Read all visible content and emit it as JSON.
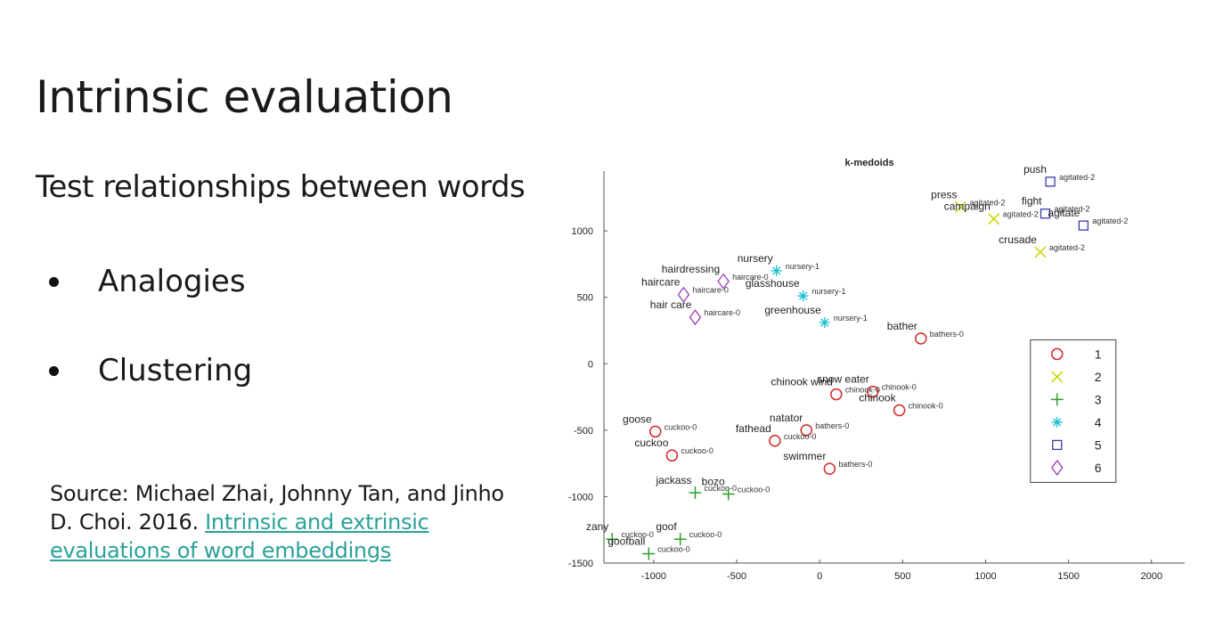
{
  "slide": {
    "title": "Intrinsic evaluation",
    "subtitle": "Test relationships between words",
    "bullets": [
      "Analogies",
      "Clustering"
    ],
    "source_text": "Source: Michael Zhai, Johnny Tan, and Jinho D. Choi. 2016. ",
    "source_link": "Intrinsic and extrinsic evaluations of word embeddings"
  },
  "chart_data": {
    "type": "scatter",
    "title": "k-medoids",
    "xlim": [
      -1300,
      2200
    ],
    "ylim": [
      -1500,
      1450
    ],
    "xticks": [
      -1000,
      -500,
      0,
      500,
      1000,
      1500,
      2000
    ],
    "yticks": [
      -1500,
      -1000,
      -500,
      0,
      500,
      1000
    ],
    "legend_position": "right",
    "cluster_styles": [
      {
        "name": "1",
        "marker": "circle",
        "color": "#d62728"
      },
      {
        "name": "2",
        "marker": "x",
        "color": "#c9d400"
      },
      {
        "name": "3",
        "marker": "plus",
        "color": "#2ca02c"
      },
      {
        "name": "4",
        "marker": "asterisk",
        "color": "#17becf"
      },
      {
        "name": "5",
        "marker": "square",
        "color": "#3b3bb0"
      },
      {
        "name": "6",
        "marker": "diamond",
        "color": "#9b3fb5"
      }
    ],
    "points": [
      {
        "word": "push",
        "tag": "agitated-2",
        "cluster": 5,
        "x": 1390,
        "y": 1370
      },
      {
        "word": "fight",
        "tag": "agitated-2",
        "cluster": 5,
        "x": 1360,
        "y": 1130
      },
      {
        "word": "agitate",
        "tag": "agitated-2",
        "cluster": 5,
        "x": 1590,
        "y": 1040
      },
      {
        "word": "press",
        "tag": "agitated-2",
        "cluster": 2,
        "x": 850,
        "y": 1180
      },
      {
        "word": "campaign",
        "tag": "agitated-2",
        "cluster": 2,
        "x": 1050,
        "y": 1090
      },
      {
        "word": "crusade",
        "tag": "agitated-2",
        "cluster": 2,
        "x": 1330,
        "y": 840
      },
      {
        "word": "hairdressing",
        "tag": "haircare-0",
        "cluster": 6,
        "x": -580,
        "y": 620
      },
      {
        "word": "haircare",
        "tag": "haircare-0",
        "cluster": 6,
        "x": -820,
        "y": 520
      },
      {
        "word": "hair care",
        "tag": "haircare-0",
        "cluster": 6,
        "x": -750,
        "y": 350
      },
      {
        "word": "nursery",
        "tag": "nursery-1",
        "cluster": 4,
        "x": -260,
        "y": 700
      },
      {
        "word": "glasshouse",
        "tag": "nursery-1",
        "cluster": 4,
        "x": -100,
        "y": 510
      },
      {
        "word": "greenhouse",
        "tag": "nursery-1",
        "cluster": 4,
        "x": 30,
        "y": 310
      },
      {
        "word": "bather",
        "tag": "bathers-0",
        "cluster": 1,
        "x": 610,
        "y": 190
      },
      {
        "word": "snow eater",
        "tag": "chinook-0",
        "cluster": 1,
        "x": 320,
        "y": -210
      },
      {
        "word": "chinook wind",
        "tag": "chinook-0",
        "cluster": 1,
        "x": 100,
        "y": -230
      },
      {
        "word": "chinook",
        "tag": "chinook-0",
        "cluster": 1,
        "x": 480,
        "y": -350
      },
      {
        "word": "natator",
        "tag": "bathers-0",
        "cluster": 1,
        "x": -80,
        "y": -500
      },
      {
        "word": "fathead",
        "tag": "cuckoo-0",
        "cluster": 1,
        "x": -270,
        "y": -580
      },
      {
        "word": "swimmer",
        "tag": "bathers-0",
        "cluster": 1,
        "x": 60,
        "y": -790
      },
      {
        "word": "goose",
        "tag": "cuckoo-0",
        "cluster": 1,
        "x": -990,
        "y": -510
      },
      {
        "word": "cuckoo",
        "tag": "cuckoo-0",
        "cluster": 1,
        "x": -890,
        "y": -690
      },
      {
        "word": "jackass",
        "tag": "cuckoo-0",
        "cluster": 3,
        "x": -750,
        "y": -970
      },
      {
        "word": "bozo",
        "tag": "cuckoo-0",
        "cluster": 3,
        "x": -550,
        "y": -980
      },
      {
        "word": "zany",
        "tag": "cuckoo-0",
        "cluster": 3,
        "x": -1250,
        "y": -1320
      },
      {
        "word": "goof",
        "tag": "cuckoo-0",
        "cluster": 3,
        "x": -840,
        "y": -1320
      },
      {
        "word": "goofball",
        "tag": "cuckoo-0",
        "cluster": 3,
        "x": -1030,
        "y": -1430
      }
    ]
  }
}
